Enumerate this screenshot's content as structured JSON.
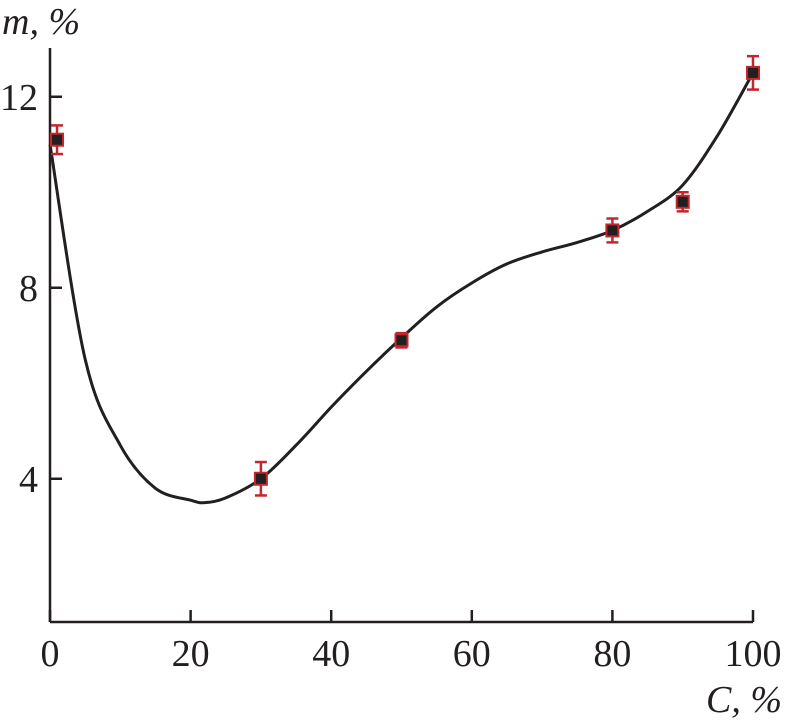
{
  "chart_data": {
    "type": "scatter",
    "xlabel": "C, %",
    "ylabel": "m, %",
    "xlim": [
      0,
      100
    ],
    "ylim": [
      1,
      13.2
    ],
    "x_ticks": [
      0,
      20,
      40,
      60,
      80,
      100
    ],
    "y_ticks": [
      4,
      8,
      12
    ],
    "grid": false,
    "legend": "none",
    "points": [
      {
        "x": 1,
        "y": 11.1,
        "err": 0.3
      },
      {
        "x": 30,
        "y": 4.0,
        "err": 0.35
      },
      {
        "x": 50,
        "y": 6.9,
        "err": 0.15
      },
      {
        "x": 80,
        "y": 9.2,
        "err": 0.25
      },
      {
        "x": 90,
        "y": 9.8,
        "err": 0.2
      },
      {
        "x": 100,
        "y": 12.5,
        "err": 0.35
      }
    ],
    "fit_curve": [
      [
        0,
        11.0
      ],
      [
        5,
        6.5
      ],
      [
        10,
        4.7
      ],
      [
        15,
        3.8
      ],
      [
        20,
        3.55
      ],
      [
        22,
        3.5
      ],
      [
        25,
        3.6
      ],
      [
        30,
        4.0
      ],
      [
        35,
        4.7
      ],
      [
        40,
        5.5
      ],
      [
        45,
        6.25
      ],
      [
        50,
        6.95
      ],
      [
        55,
        7.6
      ],
      [
        60,
        8.1
      ],
      [
        65,
        8.5
      ],
      [
        70,
        8.75
      ],
      [
        75,
        8.95
      ],
      [
        80,
        9.2
      ],
      [
        85,
        9.6
      ],
      [
        90,
        10.15
      ],
      [
        95,
        11.2
      ],
      [
        100,
        12.5
      ]
    ],
    "colors": {
      "axis": "#231f20",
      "curve": "#231f20",
      "marker": "#231f20",
      "error_bar": "#c1272d"
    }
  }
}
